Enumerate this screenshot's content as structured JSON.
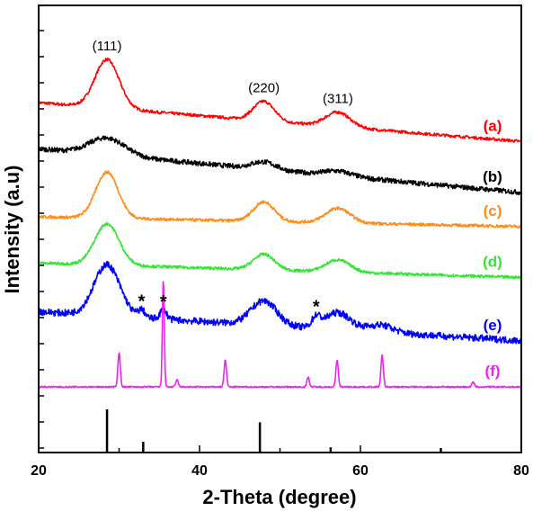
{
  "chart_data": {
    "type": "line",
    "title": "",
    "xlabel": "2-Theta (degree)",
    "ylabel": "Intensity (a.u)",
    "xlim": [
      20,
      80
    ],
    "x_ticks": [
      20,
      40,
      60,
      80
    ],
    "x_tick_labels": [
      "20",
      "40",
      "60",
      "80"
    ],
    "y_ticks_labeled": false,
    "grid": false,
    "peak_annotations": [
      {
        "label": "(111)",
        "x": 28.5
      },
      {
        "label": "(220)",
        "x": 48.0
      },
      {
        "label": "(311)",
        "x": 57.2
      }
    ],
    "impurity_markers": [
      {
        "label": "*",
        "x": 32.8
      },
      {
        "label": "*",
        "x": 35.5
      },
      {
        "label": "*",
        "x": 54.5
      }
    ],
    "series": [
      {
        "name": "(a)",
        "color": "#ff0000",
        "baseline": 7.2,
        "slope": -0.8,
        "noise": 0.03,
        "peaks": [
          [
            28.5,
            1.0,
            1.5
          ],
          [
            48.0,
            0.4,
            1.3
          ],
          [
            57.2,
            0.3,
            1.5
          ]
        ]
      },
      {
        "name": "(b)",
        "color": "#000000",
        "baseline": 6.25,
        "slope": -0.9,
        "noise": 0.05,
        "peaks": [
          [
            28.5,
            0.35,
            2.2
          ],
          [
            48.0,
            0.15,
            1.5
          ],
          [
            57.2,
            0.1,
            1.7
          ]
        ]
      },
      {
        "name": "(c)",
        "color": "#ff8c1a",
        "baseline": 4.85,
        "slope": -0.2,
        "noise": 0.03,
        "peaks": [
          [
            28.5,
            0.95,
            1.4
          ],
          [
            48.0,
            0.4,
            1.3
          ],
          [
            57.2,
            0.3,
            1.5
          ]
        ]
      },
      {
        "name": "(d)",
        "color": "#33e633",
        "baseline": 3.9,
        "slope": -0.3,
        "noise": 0.03,
        "peaks": [
          [
            28.5,
            0.85,
            1.5
          ],
          [
            48.0,
            0.32,
            1.3
          ],
          [
            57.2,
            0.25,
            1.5
          ]
        ]
      },
      {
        "name": "(e)",
        "color": "#0000ff",
        "baseline": 2.9,
        "slope": -0.6,
        "noise": 0.07,
        "peaks": [
          [
            28.5,
            1.05,
            1.6
          ],
          [
            32.8,
            0.15,
            0.4
          ],
          [
            35.5,
            0.2,
            0.4
          ],
          [
            48.0,
            0.5,
            1.6
          ],
          [
            54.5,
            0.2,
            0.5
          ],
          [
            57.2,
            0.35,
            1.6
          ],
          [
            62.5,
            0.15,
            1.5
          ]
        ]
      },
      {
        "name": "(f)",
        "color": "#ee22ee",
        "baseline": 1.35,
        "slope": 0.0,
        "noise": 0.015,
        "peaks": [
          [
            30.0,
            0.7,
            0.15
          ],
          [
            35.5,
            2.2,
            0.12
          ],
          [
            37.2,
            0.15,
            0.15
          ],
          [
            43.2,
            0.55,
            0.15
          ],
          [
            53.5,
            0.2,
            0.15
          ],
          [
            57.1,
            0.55,
            0.15
          ],
          [
            62.7,
            0.65,
            0.15
          ],
          [
            74.0,
            0.1,
            0.15
          ]
        ]
      }
    ],
    "reference_pattern": {
      "color": "#000000",
      "lines": [
        [
          28.5,
          1.0
        ],
        [
          33.0,
          0.25
        ],
        [
          47.5,
          0.7
        ],
        [
          56.3,
          0.12
        ],
        [
          70.0,
          0.1
        ]
      ]
    }
  }
}
